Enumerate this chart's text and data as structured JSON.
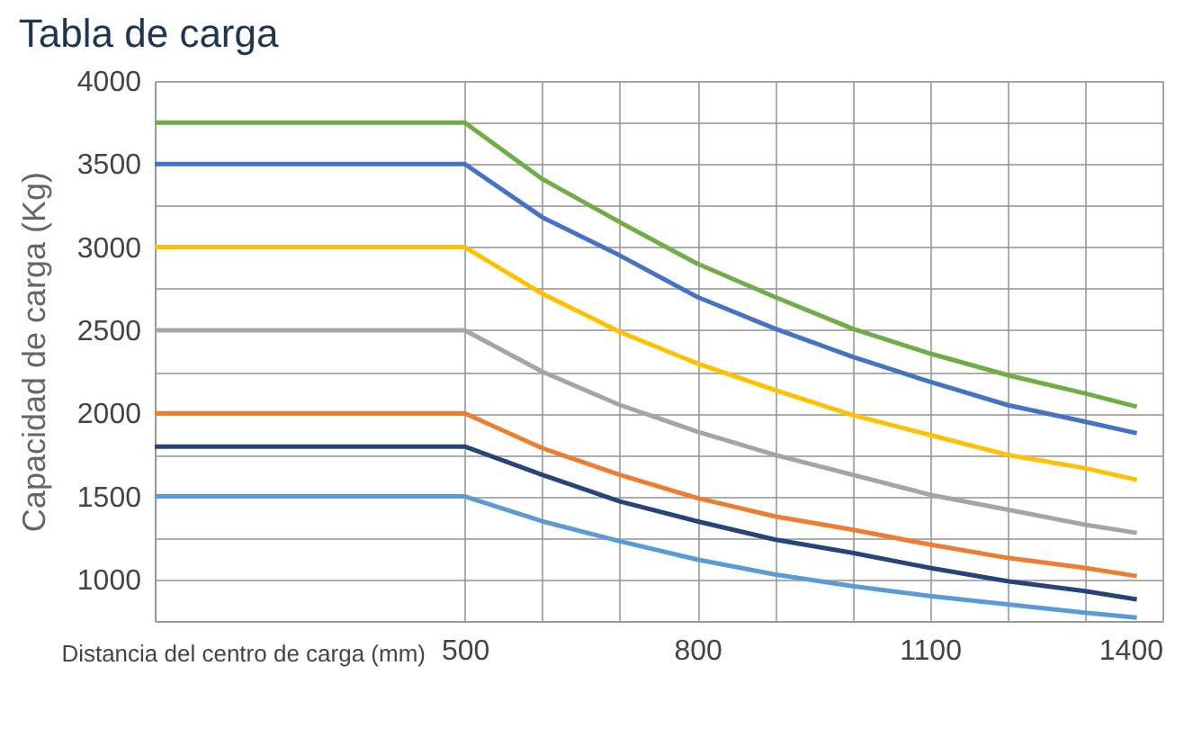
{
  "chart_data": {
    "type": "line",
    "title": "Tabla de carga",
    "xlabel": "Distancia del centro de carga (mm)",
    "ylabel": "Capacidad de carga (Kg)",
    "xlim": [
      100,
      1400
    ],
    "xticks": [
      500,
      {
        "value": 600,
        "label": null
      },
      {
        "value": 700,
        "label": null
      },
      800,
      {
        "value": 900,
        "label": null
      },
      {
        "value": 1000,
        "label": null
      },
      1100,
      {
        "value": 1200,
        "label": null
      },
      {
        "value": 1300,
        "label": null
      },
      1400
    ],
    "ylim": [
      750,
      4000
    ],
    "yticks": [
      1000,
      {
        "value": 1250,
        "label": null
      },
      1500,
      {
        "value": 1750,
        "label": null
      },
      2000,
      {
        "value": 2250,
        "label": null
      },
      2500,
      {
        "value": 2750,
        "label": null
      },
      3000,
      {
        "value": 3250,
        "label": null
      },
      3500,
      {
        "value": 3750,
        "label": null
      },
      4000
    ],
    "grid": true,
    "line_style": "solid",
    "marker": "none",
    "x": [
      100,
      500,
      600,
      700,
      800,
      900,
      1000,
      1100,
      1200,
      1300,
      1367
    ],
    "series": [
      {
        "color": "#70ad47",
        "values": [
          3750,
          3750,
          3410,
          3150,
          2900,
          2700,
          2510,
          2360,
          2230,
          2120,
          2040
        ]
      },
      {
        "color": "#4472c4",
        "values": [
          3500,
          3500,
          3180,
          2950,
          2700,
          2510,
          2340,
          2190,
          2050,
          1950,
          1880
        ]
      },
      {
        "color": "#ffc000",
        "values": [
          3000,
          3000,
          2720,
          2490,
          2300,
          2140,
          1990,
          1870,
          1750,
          1670,
          1600
        ]
      },
      {
        "color": "#a5a5a5",
        "values": [
          2500,
          2500,
          2250,
          2050,
          1890,
          1750,
          1630,
          1510,
          1420,
          1330,
          1280
        ]
      },
      {
        "color": "#ed7d31",
        "values": [
          2000,
          2000,
          1790,
          1630,
          1490,
          1380,
          1300,
          1210,
          1130,
          1070,
          1020
        ]
      },
      {
        "color": "#264478",
        "values": [
          1800,
          1800,
          1630,
          1470,
          1350,
          1240,
          1160,
          1070,
          990,
          930,
          880
        ]
      },
      {
        "color": "#5b9bd5",
        "values": [
          1500,
          1500,
          1350,
          1230,
          1120,
          1030,
          960,
          900,
          850,
          800,
          770
        ]
      }
    ]
  }
}
